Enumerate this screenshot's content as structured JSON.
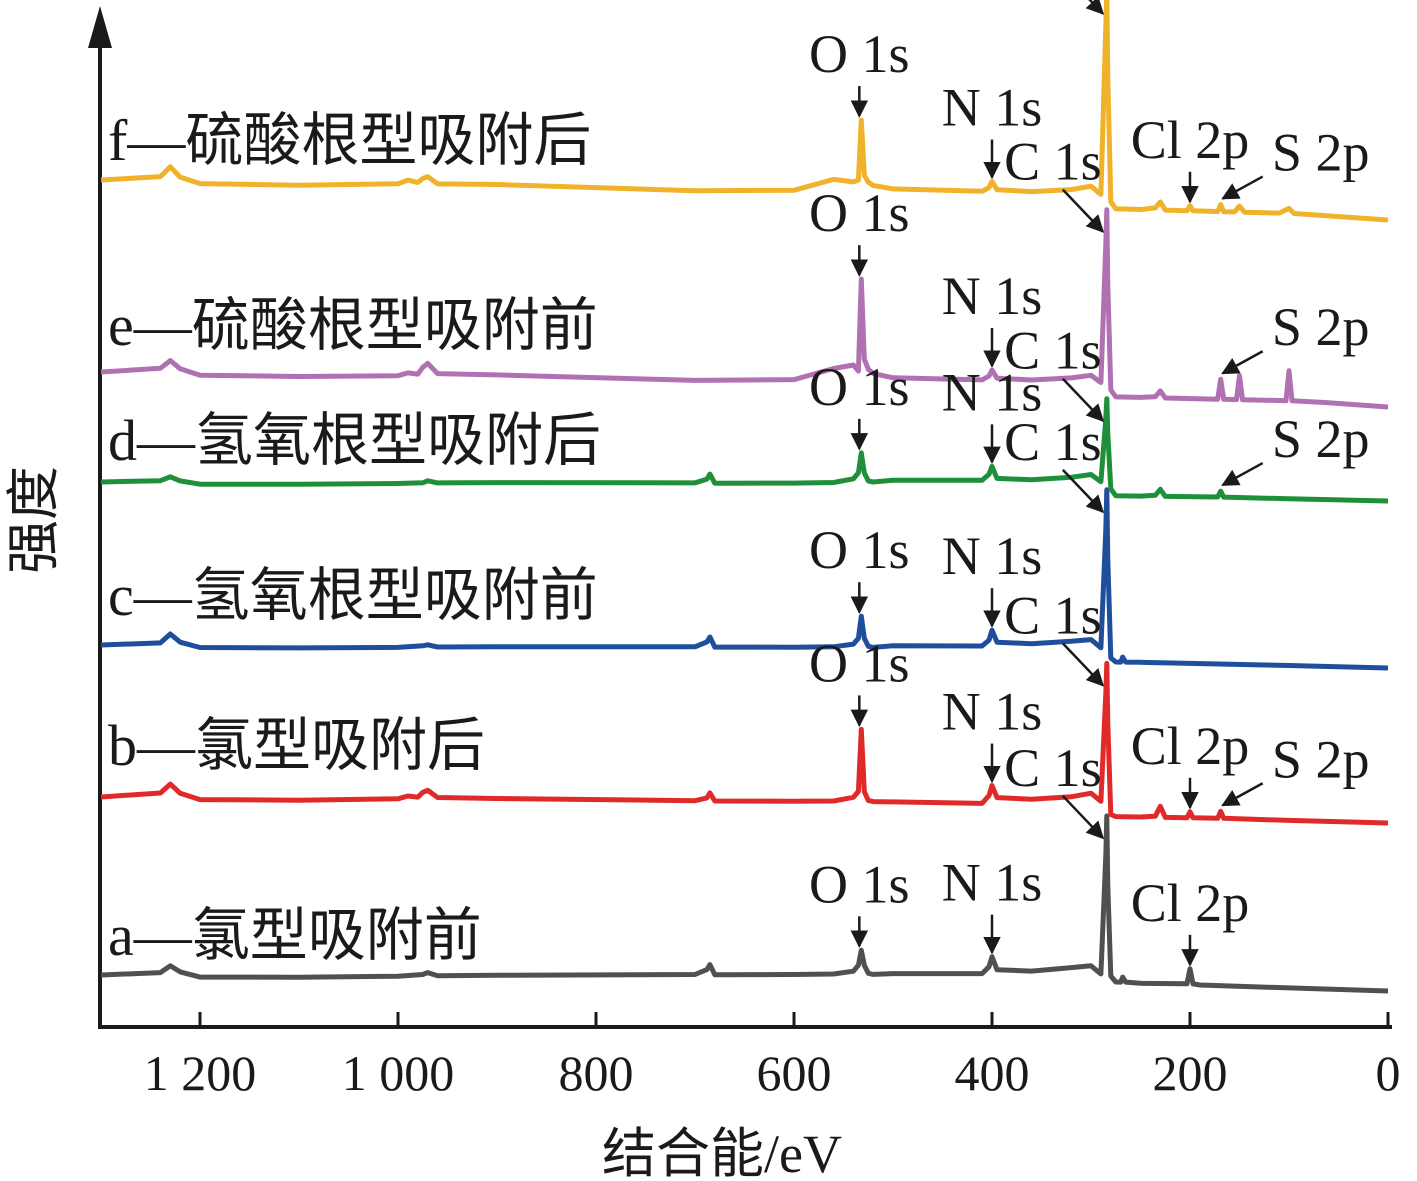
{
  "chart_data": {
    "type": "line",
    "xlabel": "结合能/eV",
    "ylabel": "强度",
    "xlim": [
      1300,
      0
    ],
    "x_reversed": true,
    "x_ticks": [
      1200,
      1000,
      800,
      600,
      400,
      200,
      0
    ],
    "x_tick_labels": [
      "1 200",
      "1 000",
      "800",
      "600",
      "400",
      "200",
      "0"
    ],
    "grid": false,
    "legend": "none",
    "series": [
      {
        "key": "a",
        "name": "a—氯型吸附前",
        "color": "#505050",
        "x": [
          1300,
          1240,
          1230,
          1220,
          1200,
          1100,
          1000,
          975,
          970,
          960,
          900,
          700,
          688,
          685,
          680,
          600,
          560,
          540,
          535,
          532,
          529,
          525,
          520,
          500,
          410,
          403,
          400,
          395,
          360,
          320,
          300,
          290,
          285,
          284,
          283,
          280,
          275,
          270,
          268,
          265,
          250,
          203,
          200,
          197,
          190,
          100,
          0
        ],
        "y": [
          0,
          3,
          10,
          4,
          -1,
          0,
          2,
          4,
          6,
          3,
          4,
          7,
          12,
          17,
          7,
          8,
          9,
          12,
          18,
          33,
          18,
          10,
          9,
          10,
          11,
          18,
          28,
          15,
          14,
          18,
          20,
          12,
          130,
          170,
          100,
          10,
          4,
          4,
          9,
          4,
          3,
          3,
          18,
          3,
          2,
          0,
          -2
        ]
      },
      {
        "key": "b",
        "name": "b—氯型吸附后",
        "color": "#e02a2a",
        "x": [
          1300,
          1240,
          1230,
          1220,
          1200,
          1100,
          1000,
          990,
          980,
          975,
          970,
          960,
          900,
          700,
          688,
          685,
          680,
          600,
          560,
          540,
          535,
          532,
          529,
          525,
          520,
          500,
          410,
          403,
          400,
          395,
          360,
          320,
          300,
          290,
          285,
          284,
          283,
          280,
          275,
          250,
          235,
          230,
          225,
          203,
          200,
          197,
          172,
          169,
          166,
          100,
          0
        ],
        "y": [
          0,
          5,
          14,
          5,
          -1,
          0,
          3,
          6,
          5,
          10,
          12,
          5,
          5,
          6,
          9,
          14,
          6,
          7,
          8,
          12,
          18,
          80,
          18,
          9,
          8,
          8,
          8,
          16,
          26,
          14,
          13,
          16,
          20,
          12,
          120,
          150,
          90,
          -1,
          -3,
          -3,
          -2,
          8,
          -3,
          -3,
          3,
          -3,
          -3,
          4,
          -3,
          -4,
          -5
        ]
      },
      {
        "key": "c",
        "name": "c—氢氧根型吸附前",
        "color": "#1f4e9c",
        "x": [
          1300,
          1240,
          1230,
          1220,
          1200,
          1100,
          1000,
          975,
          970,
          960,
          900,
          700,
          688,
          685,
          680,
          600,
          560,
          540,
          535,
          532,
          529,
          525,
          520,
          500,
          410,
          403,
          400,
          395,
          360,
          320,
          300,
          290,
          285,
          284,
          283,
          280,
          275,
          270,
          268,
          265,
          250,
          100,
          0
        ],
        "y": [
          0,
          3,
          12,
          4,
          -1,
          0,
          2,
          4,
          5,
          3,
          4,
          7,
          12,
          17,
          7,
          8,
          9,
          12,
          18,
          40,
          18,
          10,
          9,
          11,
          12,
          18,
          28,
          16,
          15,
          18,
          20,
          12,
          130,
          170,
          100,
          2,
          -2,
          -2,
          3,
          -2,
          -2,
          -3,
          -4
        ]
      },
      {
        "key": "d",
        "name": "d—氢氧根型吸附后",
        "color": "#1f8f3a",
        "x": [
          1300,
          1240,
          1230,
          1220,
          1200,
          1100,
          1000,
          975,
          970,
          960,
          900,
          700,
          688,
          685,
          680,
          600,
          560,
          540,
          535,
          532,
          529,
          525,
          520,
          500,
          410,
          403,
          400,
          395,
          360,
          320,
          300,
          290,
          285,
          284,
          283,
          280,
          275,
          250,
          235,
          230,
          225,
          172,
          169,
          166,
          100,
          0
        ],
        "y": [
          0,
          2,
          6,
          2,
          -1,
          0,
          2,
          3,
          5,
          3,
          4,
          6,
          10,
          15,
          6,
          7,
          8,
          12,
          18,
          38,
          18,
          10,
          9,
          11,
          12,
          18,
          26,
          14,
          13,
          16,
          19,
          12,
          75,
          95,
          60,
          5,
          -2,
          -2,
          -1,
          5,
          -2,
          -2,
          4,
          -2,
          -3,
          -4
        ]
      },
      {
        "key": "e",
        "name": "e—硫酸根型吸附前",
        "color": "#b071b3",
        "x": [
          1300,
          1240,
          1230,
          1220,
          1200,
          1100,
          1000,
          990,
          980,
          975,
          970,
          960,
          900,
          700,
          600,
          560,
          540,
          535,
          532,
          529,
          525,
          520,
          500,
          410,
          403,
          400,
          395,
          360,
          320,
          300,
          290,
          285,
          284,
          283,
          280,
          275,
          250,
          235,
          230,
          225,
          172,
          169,
          166,
          160,
          153,
          150,
          147,
          110,
          103,
          100,
          97,
          60,
          0
        ],
        "y": [
          0,
          5,
          13,
          5,
          -1,
          0,
          3,
          6,
          5,
          12,
          16,
          6,
          6,
          5,
          8,
          20,
          24,
          18,
          110,
          30,
          20,
          16,
          12,
          12,
          16,
          22,
          14,
          13,
          16,
          19,
          12,
          150,
          185,
          110,
          5,
          -2,
          -2,
          -1,
          5,
          -2,
          -2,
          18,
          -2,
          -2,
          -2,
          22,
          -2,
          -2,
          -2,
          28,
          -2,
          -3,
          -6
        ]
      },
      {
        "key": "f",
        "name": "f—硫酸根型吸附后",
        "color": "#f0b22a",
        "x": [
          1300,
          1240,
          1230,
          1220,
          1200,
          1100,
          1000,
          990,
          980,
          975,
          970,
          960,
          900,
          700,
          600,
          560,
          540,
          535,
          532,
          529,
          525,
          520,
          500,
          410,
          403,
          400,
          395,
          360,
          320,
          300,
          290,
          285,
          284,
          283,
          280,
          275,
          250,
          235,
          230,
          225,
          203,
          200,
          197,
          172,
          169,
          166,
          155,
          150,
          145,
          110,
          100,
          95,
          0
        ],
        "y": [
          0,
          5,
          15,
          5,
          -1,
          0,
          4,
          8,
          6,
          10,
          12,
          5,
          6,
          5,
          8,
          20,
          18,
          20,
          80,
          25,
          18,
          15,
          12,
          12,
          16,
          22,
          14,
          13,
          16,
          20,
          12,
          180,
          215,
          130,
          5,
          -2,
          -2,
          0,
          6,
          -2,
          -2,
          3,
          -2,
          -2,
          5,
          -2,
          -2,
          4,
          -2,
          -2,
          3,
          -2,
          -6
        ]
      }
    ],
    "annotations": {
      "a": [
        {
          "text": "O 1s",
          "x": 532
        },
        {
          "text": "N 1s",
          "x": 400
        },
        {
          "text": "C 1s",
          "x": 284
        },
        {
          "text": "Cl 2p",
          "x": 200
        }
      ],
      "b": [
        {
          "text": "O 1s",
          "x": 532
        },
        {
          "text": "N 1s",
          "x": 400
        },
        {
          "text": "C 1s",
          "x": 284
        },
        {
          "text": "Cl 2p",
          "x": 200
        },
        {
          "text": "S 2p",
          "x": 169
        }
      ],
      "c": [
        {
          "text": "O 1s",
          "x": 532
        },
        {
          "text": "N 1s",
          "x": 400
        },
        {
          "text": "C 1s",
          "x": 284
        }
      ],
      "d": [
        {
          "text": "O 1s",
          "x": 532
        },
        {
          "text": "N 1s",
          "x": 400
        },
        {
          "text": "C 1s",
          "x": 284
        },
        {
          "text": "S 2p",
          "x": 169
        }
      ],
      "e": [
        {
          "text": "O 1s",
          "x": 532
        },
        {
          "text": "N 1s",
          "x": 400
        },
        {
          "text": "C 1s",
          "x": 284
        },
        {
          "text": "S 2p",
          "x": 169
        }
      ],
      "f": [
        {
          "text": "O 1s",
          "x": 532
        },
        {
          "text": "N 1s",
          "x": 400
        },
        {
          "text": "C 1s",
          "x": 284
        },
        {
          "text": "Cl 2p",
          "x": 200
        },
        {
          "text": "S 2p",
          "x": 169
        }
      ]
    }
  }
}
